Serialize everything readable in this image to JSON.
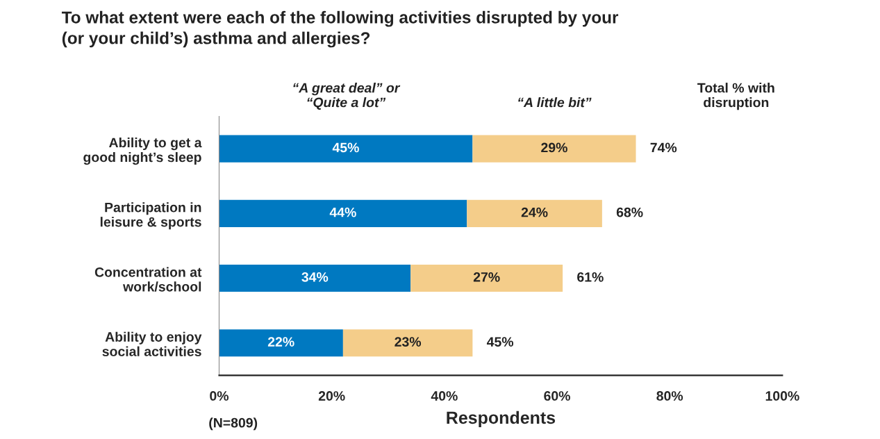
{
  "chart_data": {
    "type": "bar",
    "orientation": "horizontal",
    "stacked": true,
    "title": "To what extent were each of the following activities disrupted by your\n(or your child’s) asthma and allergies?",
    "categories": [
      "Ability to get a\ngood night’s sleep",
      "Participation in\nleisure & sports",
      "Concentration at\nwork/school",
      "Ability to enjoy\nsocial activities"
    ],
    "series": [
      {
        "name": "“A great deal” or\n“Quite a lot”",
        "color": "#0079c1",
        "values": [
          45,
          44,
          34,
          22
        ],
        "value_labels": [
          "45%",
          "44%",
          "34%",
          "22%"
        ]
      },
      {
        "name": "“A little bit”",
        "color": "#f4cd8a",
        "values": [
          29,
          24,
          27,
          23
        ],
        "value_labels": [
          "29%",
          "24%",
          "27%",
          "23%"
        ]
      }
    ],
    "totals": [
      "74%",
      "68%",
      "61%",
      "45%"
    ],
    "xlim": [
      0,
      100
    ],
    "xticks": [
      {
        "value": 0,
        "label": "0%"
      },
      {
        "value": 20,
        "label": "20%"
      },
      {
        "value": 40,
        "label": "40%"
      },
      {
        "value": 60,
        "label": "60%"
      },
      {
        "value": 80,
        "label": "80%"
      },
      {
        "value": 100,
        "label": "100%"
      }
    ],
    "xlabel": "Respondents",
    "annotations": [
      "Total % with\ndisruption",
      "(N=809)"
    ],
    "grid": false,
    "legend": false
  }
}
